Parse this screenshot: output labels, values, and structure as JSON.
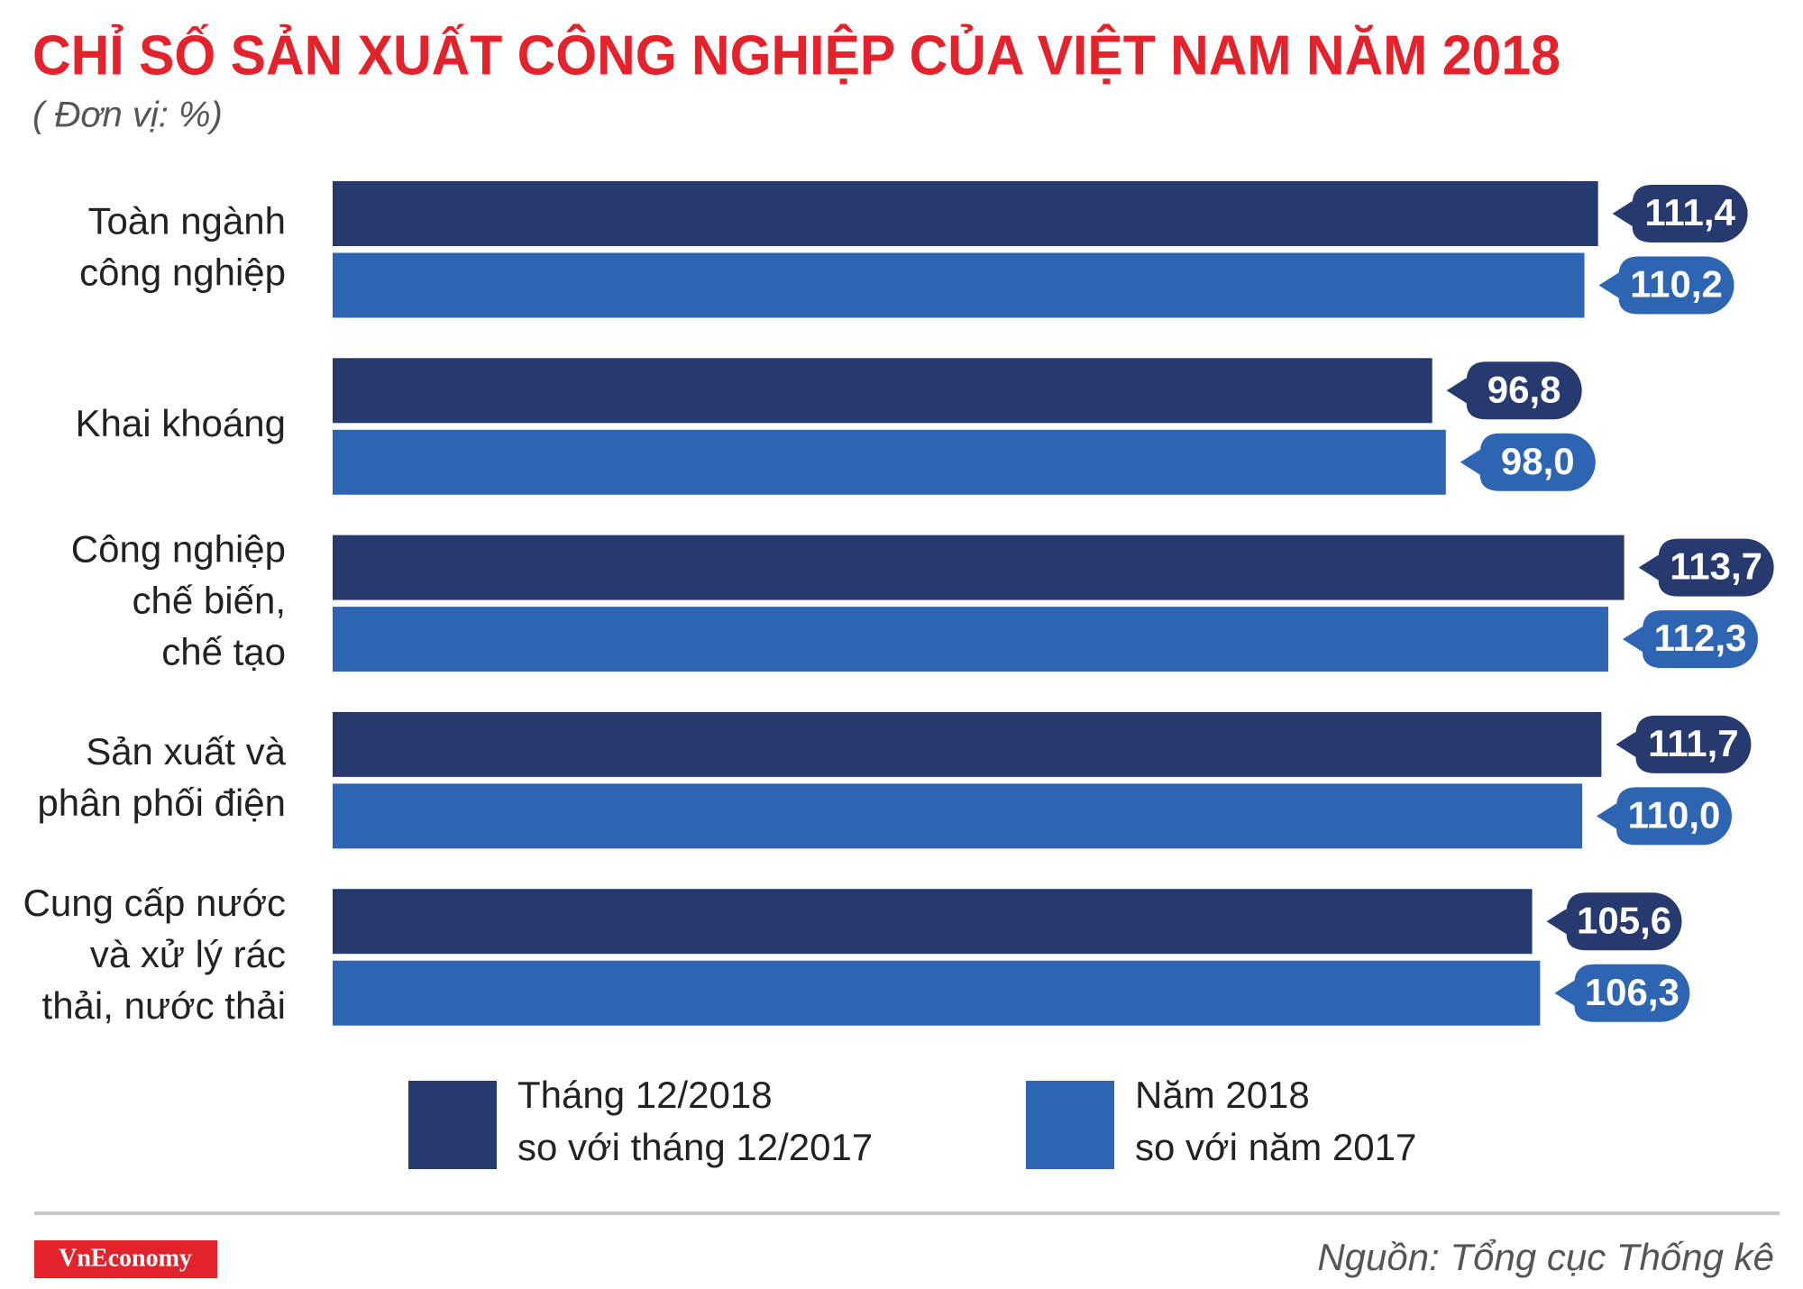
{
  "chart_data": {
    "type": "bar",
    "orientation": "horizontal",
    "title": "CHỈ SỐ SẢN XUẤT CÔNG NGHIỆP CỦA VIỆT NAM NĂM 2018",
    "subtitle": "( Đơn vị: %)",
    "categories": [
      "Toàn ngành\ncông nghiệp",
      "Khai khoáng",
      "Công nghiệp\nchế biến,\nchế tạo",
      "Sản xuất và\nphân phối điện",
      "Cung cấp nước\nvà xử lý rác\nthải, nước thải"
    ],
    "series": [
      {
        "name": "Tháng 12/2018\nso với tháng 12/2017",
        "color": "#263a70",
        "values": [
          111.4,
          96.8,
          113.7,
          111.7,
          105.6
        ],
        "value_labels": [
          "111,4",
          "96,8",
          "113,7",
          "111,7",
          "105,6"
        ]
      },
      {
        "name": "Năm 2018\nso với năm 2017",
        "color": "#2d65b2",
        "values": [
          110.2,
          98.0,
          112.3,
          110.0,
          106.3
        ],
        "value_labels": [
          "110,2",
          "98,0",
          "112,3",
          "110,0",
          "106,3"
        ]
      }
    ],
    "source": "Nguồn: Tổng cục Thống kê",
    "brand": "VnEconomy"
  }
}
